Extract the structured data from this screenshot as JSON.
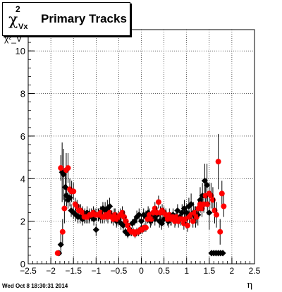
{
  "chart_data": {
    "type": "scatter",
    "title": {
      "symbol": "χ",
      "superscript": "2",
      "subscript": "Vx",
      "text": "Primary Tracks"
    },
    "xlabel": "η",
    "ylabel": "χ²_V",
    "xlim": [
      -2.5,
      2.5
    ],
    "ylim": [
      0,
      11
    ],
    "xticks": [
      "−2.5",
      "−2",
      "−1.5",
      "−1",
      "−0.5",
      "0",
      "0.5",
      "1",
      "1.5",
      "2",
      "2.5"
    ],
    "yticks": [
      "0",
      "2",
      "4",
      "6",
      "8",
      "10"
    ],
    "grid": true,
    "colors": {
      "series1": "#000000",
      "series2": "#ff0000"
    },
    "series": [
      {
        "marker": "diamond",
        "color": "#000000",
        "x": [
          -1.82,
          -1.78,
          -1.75,
          -1.72,
          -1.68,
          -1.65,
          -1.62,
          -1.58,
          -1.55,
          -1.5,
          -1.45,
          -1.4,
          -1.35,
          -1.3,
          -1.25,
          -1.2,
          -1.15,
          -1.1,
          -1.05,
          -1.0,
          -0.95,
          -0.9,
          -0.85,
          -0.8,
          -0.75,
          -0.7,
          -0.65,
          -0.6,
          -0.55,
          -0.5,
          -0.45,
          -0.4,
          -0.35,
          -0.3,
          -0.25,
          -0.2,
          -0.15,
          -0.1,
          -0.05,
          0.0,
          0.05,
          0.1,
          0.15,
          0.2,
          0.25,
          0.3,
          0.35,
          0.4,
          0.45,
          0.5,
          0.55,
          0.6,
          0.65,
          0.7,
          0.75,
          0.8,
          0.85,
          0.9,
          0.95,
          1.0,
          1.05,
          1.1,
          1.15,
          1.2,
          1.25,
          1.3,
          1.35,
          1.4,
          1.45,
          1.5,
          1.55,
          1.6,
          1.65,
          1.7,
          1.75,
          1.8
        ],
        "y": [
          0.5,
          0.9,
          4.3,
          4.2,
          3.6,
          3.2,
          3.0,
          3.1,
          2.5,
          2.4,
          2.3,
          2.2,
          2.2,
          2.1,
          2.3,
          2.4,
          2.2,
          2.3,
          2.1,
          1.6,
          2.3,
          2.2,
          2.6,
          2.5,
          2.6,
          2.7,
          2.2,
          2.3,
          2.0,
          2.1,
          1.9,
          1.8,
          1.5,
          1.4,
          1.5,
          1.9,
          2.0,
          2.2,
          2.3,
          2.0,
          2.3,
          2.2,
          2.4,
          2.0,
          2.2,
          2.1,
          2.3,
          2.0,
          1.9,
          2.1,
          2.2,
          2.0,
          2.1,
          2.3,
          2.1,
          2.5,
          2.2,
          2.4,
          2.6,
          2.4,
          2.7,
          2.8,
          2.4,
          2.2,
          2.3,
          3.0,
          3.2,
          3.9,
          3.7,
          2.4,
          0.5,
          0.5,
          0.5,
          0.5,
          0.5,
          0.5
        ],
        "yerr": [
          0.1,
          0.5,
          1.4,
          1.2,
          0.7,
          0.5,
          0.4,
          0.4,
          0.3,
          0.3,
          0.3,
          0.3,
          0.3,
          0.3,
          0.3,
          0.3,
          0.3,
          0.3,
          0.3,
          0.3,
          0.3,
          0.3,
          0.3,
          0.4,
          0.4,
          0.4,
          0.3,
          0.3,
          0.3,
          0.3,
          0.3,
          0.3,
          0.2,
          0.2,
          0.2,
          0.2,
          0.2,
          0.3,
          0.3,
          0.3,
          0.3,
          0.3,
          0.3,
          0.3,
          0.3,
          0.3,
          0.3,
          0.3,
          0.3,
          0.3,
          0.3,
          0.3,
          0.3,
          0.3,
          0.3,
          0.3,
          0.3,
          0.4,
          0.4,
          0.4,
          0.4,
          0.5,
          0.5,
          0.5,
          0.5,
          0.6,
          0.6,
          0.8,
          1.0,
          0.8,
          0.1,
          0.1,
          0.1,
          0.1,
          0.1,
          0.1
        ]
      },
      {
        "marker": "circle",
        "color": "#ff0000",
        "x": [
          -1.85,
          -1.78,
          -1.74,
          -1.7,
          -1.66,
          -1.62,
          -1.58,
          -1.54,
          -1.5,
          -1.46,
          -1.42,
          -1.38,
          -1.34,
          -1.3,
          -1.26,
          -1.22,
          -1.18,
          -1.14,
          -1.1,
          -1.06,
          -1.02,
          -0.98,
          -0.94,
          -0.9,
          -0.86,
          -0.82,
          -0.78,
          -0.74,
          -0.7,
          -0.66,
          -0.62,
          -0.58,
          -0.54,
          -0.5,
          -0.46,
          -0.42,
          -0.38,
          -0.34,
          -0.3,
          -0.26,
          -0.22,
          -0.18,
          -0.14,
          -0.1,
          -0.06,
          -0.02,
          0.02,
          0.06,
          0.1,
          0.14,
          0.18,
          0.22,
          0.26,
          0.3,
          0.34,
          0.38,
          0.42,
          0.46,
          0.5,
          0.54,
          0.58,
          0.62,
          0.66,
          0.7,
          0.74,
          0.78,
          0.82,
          0.86,
          0.9,
          0.94,
          0.98,
          1.02,
          1.06,
          1.1,
          1.14,
          1.18,
          1.22,
          1.26,
          1.3,
          1.34,
          1.38,
          1.42,
          1.46,
          1.5,
          1.54,
          1.58,
          1.62,
          1.66,
          1.7,
          1.74,
          1.78,
          1.82
        ],
        "y": [
          0.5,
          4.5,
          1.5,
          2.6,
          4.4,
          4.5,
          3.5,
          3.4,
          3.4,
          2.8,
          2.7,
          2.5,
          2.5,
          2.4,
          2.2,
          2.2,
          2.2,
          2.3,
          2.3,
          2.4,
          2.3,
          2.3,
          2.3,
          2.4,
          2.2,
          2.2,
          2.3,
          2.2,
          2.4,
          2.2,
          2.1,
          2.3,
          2.1,
          2.2,
          2.3,
          2.4,
          2.2,
          2.0,
          1.8,
          1.6,
          1.5,
          1.5,
          1.4,
          1.5,
          1.5,
          1.6,
          1.6,
          1.7,
          1.7,
          2.1,
          2.3,
          2.1,
          2.4,
          2.6,
          2.4,
          2.9,
          2.4,
          2.5,
          2.4,
          2.3,
          2.1,
          2.3,
          2.1,
          2.2,
          2.0,
          2.2,
          2.0,
          2.1,
          2.1,
          1.9,
          2.1,
          1.8,
          2.2,
          2.3,
          2.0,
          2.4,
          2.2,
          2.6,
          2.8,
          2.6,
          2.8,
          3.2,
          2.8,
          3.3,
          3.2,
          3.0,
          2.5,
          2.3,
          4.8,
          1.5,
          3.3,
          2.7
        ],
        "yerr": [
          0.1,
          0.6,
          0.6,
          0.7,
          0.8,
          0.7,
          0.5,
          0.5,
          0.4,
          0.3,
          0.3,
          0.3,
          0.3,
          0.3,
          0.3,
          0.3,
          0.3,
          0.3,
          0.3,
          0.3,
          0.3,
          0.3,
          0.3,
          0.3,
          0.3,
          0.3,
          0.3,
          0.3,
          0.3,
          0.3,
          0.3,
          0.3,
          0.3,
          0.3,
          0.3,
          0.3,
          0.3,
          0.2,
          0.2,
          0.2,
          0.2,
          0.2,
          0.2,
          0.2,
          0.2,
          0.2,
          0.2,
          0.2,
          0.2,
          0.2,
          0.3,
          0.3,
          0.3,
          0.3,
          0.3,
          0.3,
          0.3,
          0.3,
          0.3,
          0.3,
          0.3,
          0.3,
          0.3,
          0.3,
          0.3,
          0.3,
          0.3,
          0.3,
          0.3,
          0.3,
          0.3,
          0.3,
          0.3,
          0.3,
          0.3,
          0.3,
          0.3,
          0.4,
          0.4,
          0.4,
          0.4,
          0.5,
          0.5,
          0.5,
          0.6,
          0.6,
          0.6,
          0.6,
          1.3,
          0.6,
          0.6,
          0.5
        ]
      }
    ]
  },
  "footer": {
    "timestamp": "Wed Oct  8 18:30:31 2014"
  }
}
